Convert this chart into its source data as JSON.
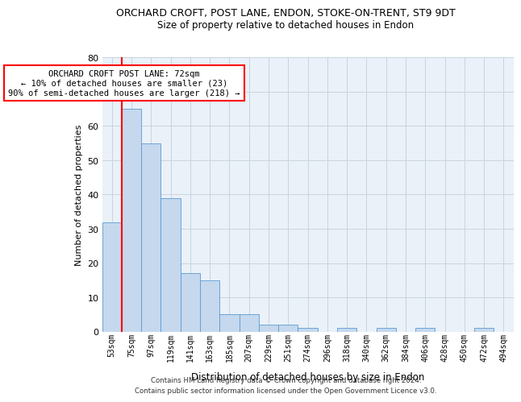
{
  "title": "ORCHARD CROFT, POST LANE, ENDON, STOKE-ON-TRENT, ST9 9DT",
  "subtitle": "Size of property relative to detached houses in Endon",
  "xlabel": "Distribution of detached houses by size in Endon",
  "ylabel": "Number of detached properties",
  "categories": [
    "53sqm",
    "75sqm",
    "97sqm",
    "119sqm",
    "141sqm",
    "163sqm",
    "185sqm",
    "207sqm",
    "229sqm",
    "251sqm",
    "274sqm",
    "296sqm",
    "318sqm",
    "340sqm",
    "362sqm",
    "384sqm",
    "406sqm",
    "428sqm",
    "450sqm",
    "472sqm",
    "494sqm"
  ],
  "values": [
    32,
    65,
    55,
    39,
    17,
    15,
    5,
    5,
    2,
    2,
    1,
    0,
    1,
    0,
    1,
    0,
    1,
    0,
    0,
    1,
    0
  ],
  "bar_color": "#c5d8ed",
  "bar_edge_color": "#5b9bd5",
  "bar_width": 1.0,
  "ylim": [
    0,
    80
  ],
  "yticks": [
    0,
    10,
    20,
    30,
    40,
    50,
    60,
    70,
    80
  ],
  "annotation_box_text": "ORCHARD CROFT POST LANE: 72sqm\n← 10% of detached houses are smaller (23)\n90% of semi-detached houses are larger (218) →",
  "background_color": "#ffffff",
  "grid_color": "#c8d4e0",
  "footer_line1": "Contains HM Land Registry data © Crown copyright and database right 2024.",
  "footer_line2": "Contains public sector information licensed under the Open Government Licence v3.0."
}
